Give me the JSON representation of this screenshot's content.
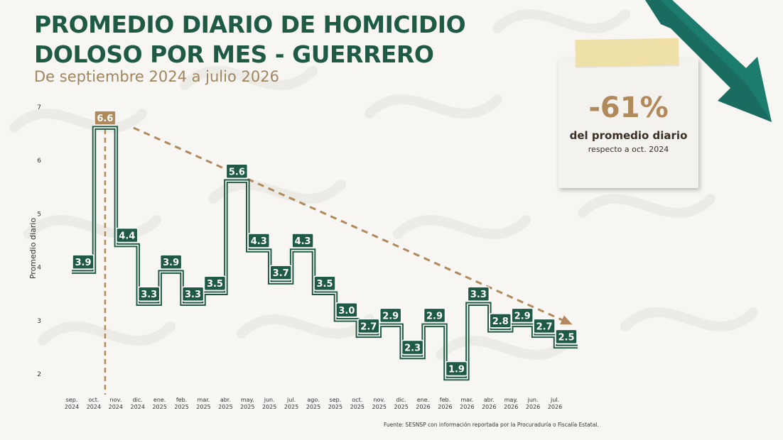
{
  "header": {
    "title_line1": "PROMEDIO DIARIO DE HOMICIDIO",
    "title_line2": "DOLOSO POR MES - GUERRERO",
    "subtitle": "De septiembre 2024 a julio 2026"
  },
  "note": {
    "value": "-61%",
    "line1": "del promedio diario",
    "line2": "respecto a oct. 2024"
  },
  "source": "Fuente: SESNSP con información reportada por la Procuraduría o Fiscalía Estatal.",
  "colors": {
    "title": "#1f5a45",
    "subtitle": "#a08660",
    "line": "#1f5a45",
    "label_bg": "#1f5a45",
    "highlight": "#b08a5c",
    "trend": "#b08a5c",
    "arrow": "#1a7a6e"
  },
  "icons": {
    "trend_arrow": "down-arrow-icon"
  },
  "chart_data": {
    "type": "line",
    "step": true,
    "title": "PROMEDIO DIARIO DE HOMICIDIO DOLOSO POR MES - GUERRERO",
    "subtitle": "De septiembre 2024 a julio 2026",
    "xlabel": "",
    "ylabel": "Promedio diario",
    "ylim": [
      2,
      7
    ],
    "yticks": [
      2,
      3,
      4,
      5,
      6,
      7
    ],
    "grid": false,
    "x": [
      [
        "sep.",
        "2024"
      ],
      [
        "oct.",
        "2024"
      ],
      [
        "nov.",
        "2024"
      ],
      [
        "dic.",
        "2024"
      ],
      [
        "ene.",
        "2025"
      ],
      [
        "feb.",
        "2025"
      ],
      [
        "mar.",
        "2025"
      ],
      [
        "abr.",
        "2025"
      ],
      [
        "may.",
        "2025"
      ],
      [
        "jun.",
        "2025"
      ],
      [
        "jul.",
        "2025"
      ],
      [
        "ago.",
        "2025"
      ],
      [
        "sep.",
        "2025"
      ],
      [
        "oct.",
        "2025"
      ],
      [
        "nov.",
        "2025"
      ],
      [
        "dic.",
        "2025"
      ],
      [
        "ene.",
        "2026"
      ],
      [
        "feb.",
        "2026"
      ],
      [
        "mar.",
        "2026"
      ],
      [
        "abr.",
        "2026"
      ],
      [
        "may.",
        "2026"
      ],
      [
        "jun.",
        "2026"
      ],
      [
        "jul.",
        "2026"
      ]
    ],
    "values": [
      3.9,
      6.6,
      4.4,
      3.3,
      3.9,
      3.3,
      3.5,
      5.6,
      4.3,
      3.7,
      4.3,
      3.5,
      3.0,
      2.7,
      2.9,
      2.3,
      2.9,
      1.9,
      3.3,
      2.8,
      2.9,
      2.7,
      2.5
    ],
    "labels": [
      "3.9",
      "6.6",
      "4.4",
      "3.3",
      "3.9",
      "3.3",
      "3.5",
      "5.6",
      "4.3",
      "3.7",
      "4.3",
      "3.5",
      "3.0",
      "2.7",
      "2.9",
      "2.3",
      "2.9",
      "1.9",
      "3.3",
      "2.8",
      "2.9",
      "2.7",
      "2.5"
    ],
    "highlight_index": 1,
    "trend_from": [
      1,
      6.6
    ],
    "trend_to": [
      22,
      3.0
    ]
  }
}
